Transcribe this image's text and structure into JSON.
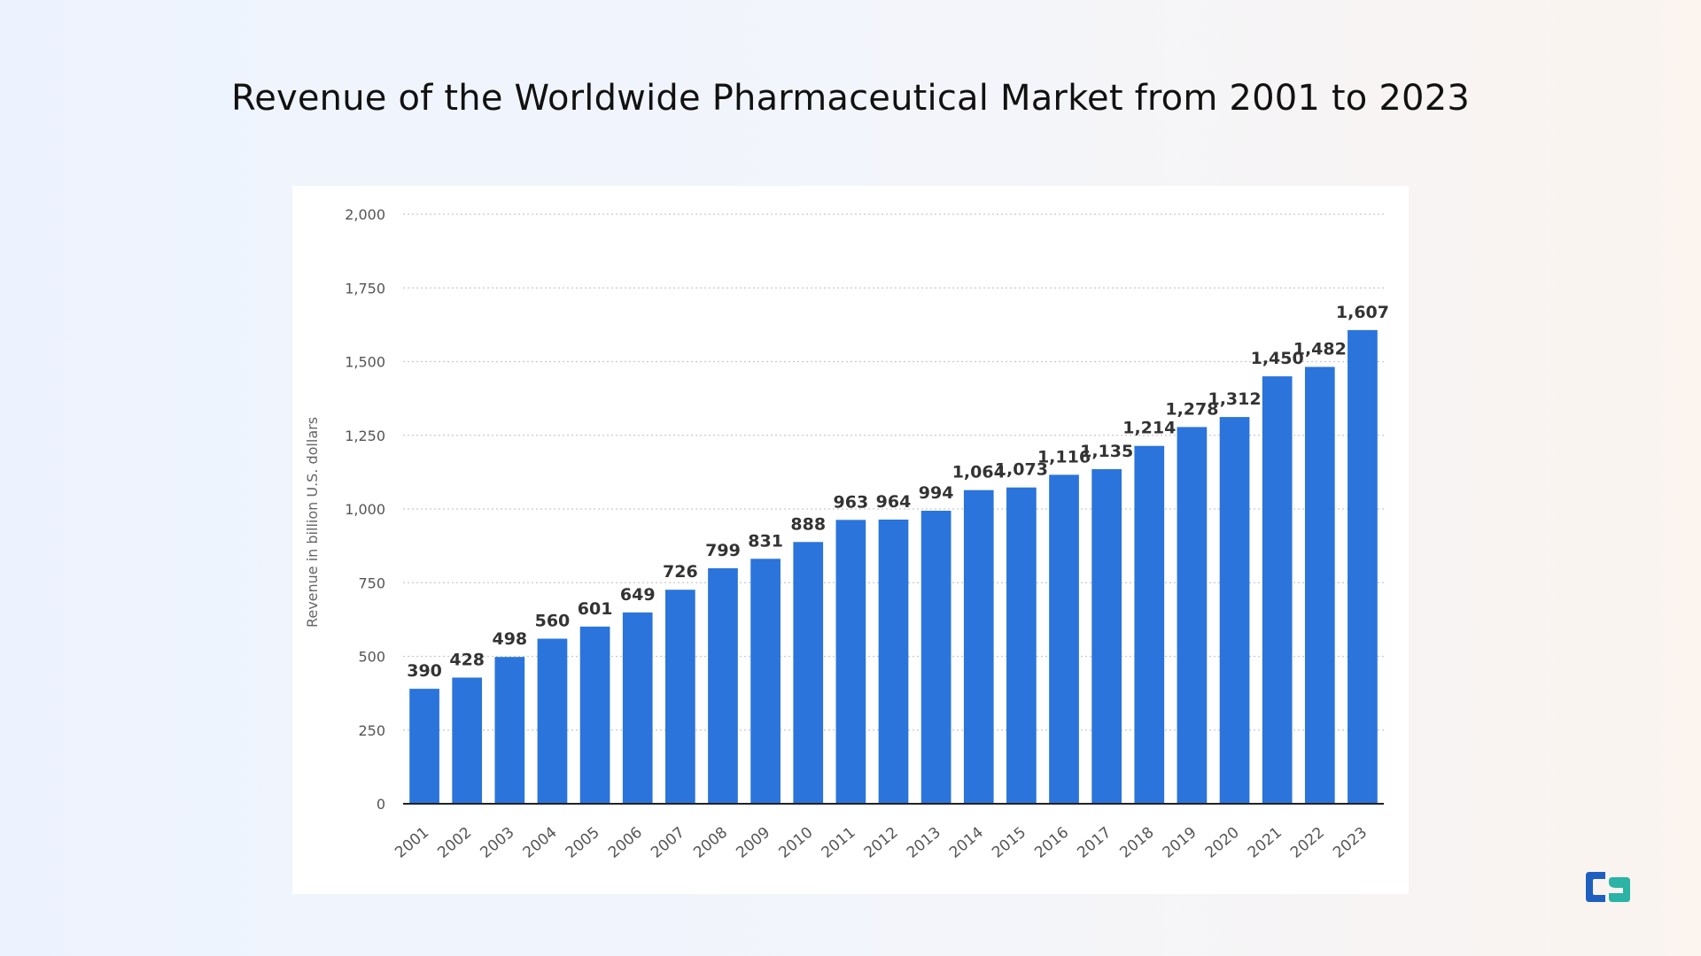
{
  "title": "Revenue of the Worldwide Pharmaceutical Market from 2001 to 2023",
  "colors": {
    "bar": "#2a74db",
    "logo_blue": "#1f5fbf",
    "logo_teal": "#2bb3a5"
  },
  "logo": {
    "icon": "brand-logo-icon"
  },
  "chart_data": {
    "type": "bar",
    "title": "",
    "xlabel": "",
    "ylabel": "Revenue in billion U.S. dollars",
    "ylim": [
      0,
      2000
    ],
    "yticks": [
      0,
      250,
      500,
      750,
      1000,
      1250,
      1500,
      1750,
      2000
    ],
    "ytick_labels": [
      "0",
      "250",
      "500",
      "750",
      "1,000",
      "1,250",
      "1,500",
      "1,750",
      "2,000"
    ],
    "grid": true,
    "categories": [
      "2001",
      "2002",
      "2003",
      "2004",
      "2005",
      "2006",
      "2007",
      "2008",
      "2009",
      "2010",
      "2011",
      "2012",
      "2013",
      "2014",
      "2015",
      "2016",
      "2017",
      "2018",
      "2019",
      "2020",
      "2021",
      "2022",
      "2023"
    ],
    "values": [
      390,
      428,
      498,
      560,
      601,
      649,
      726,
      799,
      831,
      888,
      963,
      964,
      994,
      1064,
      1073,
      1116,
      1135,
      1214,
      1278,
      1312,
      1450,
      1482,
      1607
    ],
    "value_labels": [
      "390",
      "428",
      "498",
      "560",
      "601",
      "649",
      "726",
      "799",
      "831",
      "888",
      "963",
      "964",
      "994",
      "1,064",
      "1,073",
      "1,116",
      "1,135",
      "1,214",
      "1,278",
      "1,312",
      "1,450",
      "1,482",
      "1,607"
    ]
  }
}
